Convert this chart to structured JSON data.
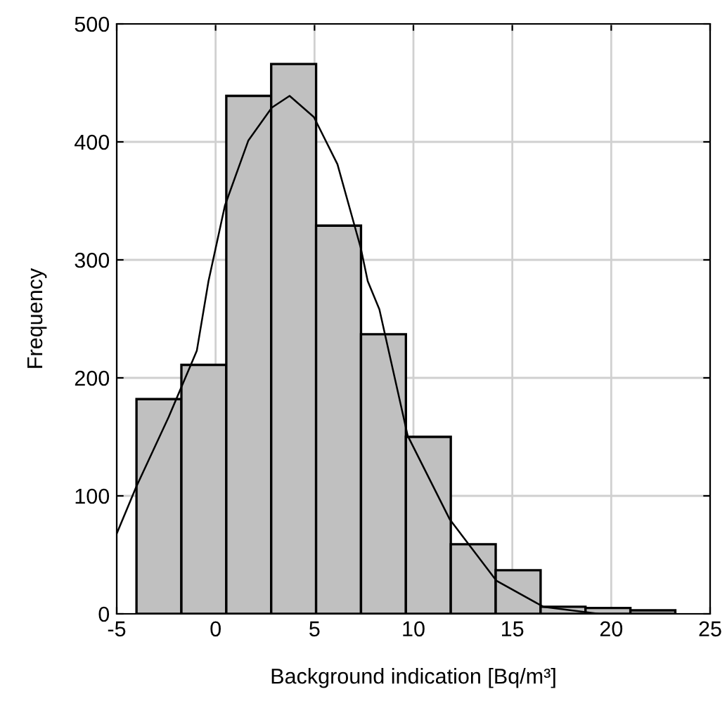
{
  "chart_data": {
    "type": "histogram",
    "xlabel": "Background indication [Bq/m³]",
    "ylabel": "Frequency",
    "bins": [
      -4,
      -1.73,
      0.54,
      2.81,
      5.08,
      7.35,
      9.62,
      11.89,
      14.16,
      16.43,
      18.7,
      20.97,
      23.24
    ],
    "values": [
      182,
      211,
      439,
      466,
      329,
      237,
      150,
      59,
      37,
      6,
      5,
      3
    ],
    "color": "#c0c0c0",
    "series": [
      {
        "type": "line",
        "color": "#000000",
        "x": [
          -5,
          -4.03,
          -2.37,
          -0.95,
          -0.36,
          0.47,
          1.65,
          2.84,
          3.74,
          4.97,
          6.16,
          7.34,
          7.69,
          8.28,
          9.71,
          11.84,
          14.2,
          16.57,
          19.4,
          23
        ],
        "values": [
          68,
          107,
          167,
          223,
          282,
          346,
          401,
          429,
          439,
          421,
          381,
          310,
          282,
          258,
          151,
          80,
          28,
          6,
          0,
          0
        ]
      }
    ],
    "xlim": [
      -5,
      25
    ],
    "xticks": [
      -5,
      0,
      5,
      10,
      15,
      20,
      25
    ],
    "ylim": [
      0,
      500
    ],
    "yticks": [
      0,
      100,
      200,
      300,
      400,
      500
    ],
    "grid": true
  }
}
